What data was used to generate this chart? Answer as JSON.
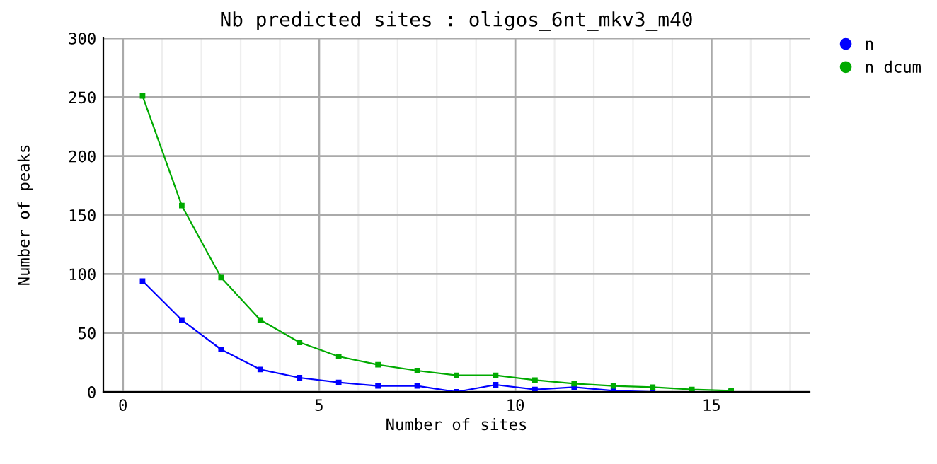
{
  "chart_data": {
    "type": "line",
    "title": "Nb predicted sites : oligos_6nt_mkv3_m40",
    "xlabel": "Number of sites",
    "ylabel": "Number of peaks",
    "x": [
      0.5,
      1.5,
      2.5,
      3.5,
      4.5,
      5.5,
      6.5,
      7.5,
      8.5,
      9.5,
      10.5,
      11.5,
      12.5,
      13.5,
      14.5,
      15.5
    ],
    "series": [
      {
        "name": "n",
        "color": "#0000ff",
        "values": [
          94,
          61,
          36,
          19,
          12,
          8,
          5,
          5,
          0,
          6,
          2,
          4,
          1,
          0,
          0,
          0
        ]
      },
      {
        "name": "n_dcum",
        "color": "#00aa00",
        "values": [
          251,
          158,
          97,
          61,
          42,
          30,
          23,
          18,
          14,
          14,
          10,
          7,
          5,
          4,
          2,
          1
        ]
      }
    ],
    "xlim": [
      -0.5,
      17.5
    ],
    "xticks": [
      0,
      5,
      10,
      15
    ],
    "ylim": [
      0,
      300
    ],
    "yticks": [
      0,
      50,
      100,
      150,
      200,
      250,
      300
    ],
    "grid": true,
    "legend": "top right",
    "marker": "square",
    "line_style": "solid"
  }
}
